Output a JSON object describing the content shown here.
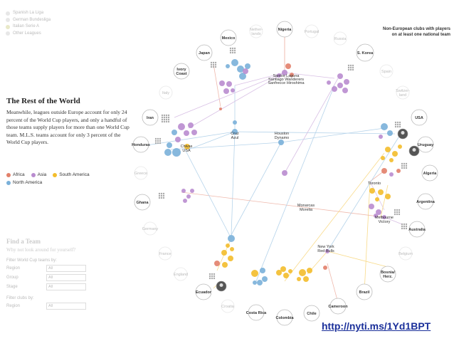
{
  "top_legend": [
    {
      "label": "Spanish La Liga",
      "color": "#e7e7e7"
    },
    {
      "label": "German Bundesliga",
      "color": "#e7e7e7"
    },
    {
      "label": "Italian Serie A",
      "color": "#e9e9c8"
    },
    {
      "label": "Other Leagues",
      "color": "#e7e7e7"
    }
  ],
  "article": {
    "title": "The Rest of the World",
    "body": "Meanwhile, leagues outside Europe account for only 24 percent of the World Cup players, and only a handful of those teams supply players for more than one World Cup team. M.L.S. teams account for only 3 percent of the World Cup players."
  },
  "confederation_legend": [
    {
      "label": "Africa",
      "color": "#e2806a"
    },
    {
      "label": "Asia",
      "color": "#b98ccf"
    },
    {
      "label": "South America",
      "color": "#f3bd2b"
    },
    {
      "label": "North America",
      "color": "#7ab0d9"
    }
  ],
  "finder": {
    "title": "Find a Team",
    "subtitle": "Why not look around for yourself?",
    "filter_teams_label": "Filter World Cup teams by:",
    "team_filters": [
      {
        "key": "Region",
        "value": "All"
      },
      {
        "key": "Group",
        "value": "All"
      },
      {
        "key": "Stage",
        "value": "All"
      }
    ],
    "filter_clubs_label": "Filter clubs by:",
    "club_filters": [
      {
        "key": "Region",
        "value": "All"
      }
    ]
  },
  "diagram_title": "Non-European clubs with players on at least one national team",
  "url": "http://nyti.ms/1Yd1BPT",
  "teams_active": [
    "Mexico",
    "Nigeria",
    "S. Korea",
    "Japan",
    "Ivory Coast",
    "Iran",
    "USA",
    "Honduras",
    "Uruguay",
    "Algeria",
    "Ghana",
    "Argentina",
    "Australia",
    "Ecuador",
    "Bosnia/ Herz.",
    "Brazil",
    "Costa Rica",
    "Colombia",
    "Chile",
    "Cameroon"
  ],
  "teams_inactive": [
    "Nether- lands",
    "Portugal",
    "Russia",
    "Spain",
    "Italy",
    "Switzer- land",
    "Greece",
    "Germany",
    "France",
    "England",
    "Croatia",
    "Belgium"
  ],
  "clubs": [
    "Santos Laguna",
    "Santiago Wanderers",
    "Sanfrecce Hiroshima",
    "Cruz Azul",
    "Houston Dynamo",
    "Chivas USA",
    "Toronto",
    "Monarcas Morelia",
    "Melbourne Victory",
    "New York Red Bulls"
  ]
}
